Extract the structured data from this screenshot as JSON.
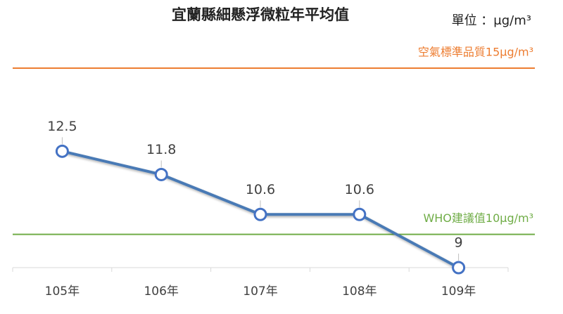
{
  "chart_data": {
    "type": "line",
    "title": "宜蘭縣細懸浮微粒年平均值",
    "unit_label": "單位 ：μg/m³",
    "categories": [
      "105年",
      "106年",
      "107年",
      "108年",
      "109年"
    ],
    "series": [
      {
        "color": "#4472c4",
        "values": [
          12.5,
          11.8,
          10.6,
          10.6,
          9
        ]
      }
    ],
    "reference_lines": [
      {
        "value": 15,
        "label": "空氣標準品質15μg/m³",
        "color": "#ed7d31"
      },
      {
        "value": 10,
        "label": "WHO建議值10μg/m³",
        "color": "#70ad47"
      }
    ],
    "ylim": [
      9,
      15
    ]
  }
}
